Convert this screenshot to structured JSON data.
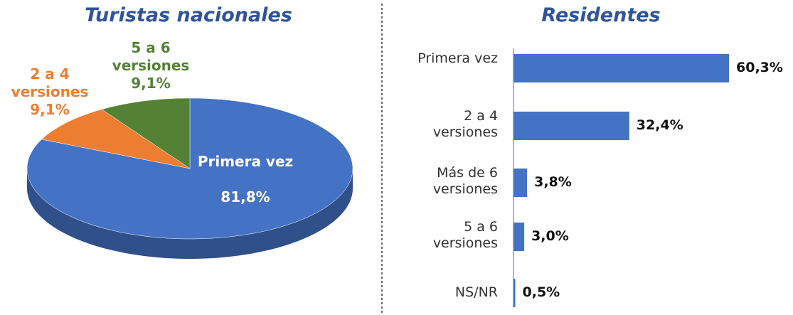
{
  "chart_data": [
    {
      "type": "pie",
      "title": "Turistas nacionales",
      "categories": [
        "Primera vez",
        "2 a 4 versiones",
        "5 a 6 versiones"
      ],
      "values": [
        81.8,
        9.1,
        9.1
      ],
      "value_labels": [
        "81,8%",
        "9,1%",
        "9,1%"
      ],
      "colors": [
        "#4472c4",
        "#ed7d31",
        "#548235"
      ]
    },
    {
      "type": "barh",
      "title": "Residentes",
      "categories": [
        "Primera vez",
        "2 a 4 versiones",
        "Más de 6 versiones",
        "5 a 6 versiones",
        "NS/NR"
      ],
      "values": [
        60.3,
        32.4,
        3.8,
        3.0,
        0.5
      ],
      "value_labels": [
        "60,3%",
        "32,4%",
        "3,8%",
        "3,0%",
        "0,5%"
      ],
      "color": "#4472c4"
    }
  ]
}
